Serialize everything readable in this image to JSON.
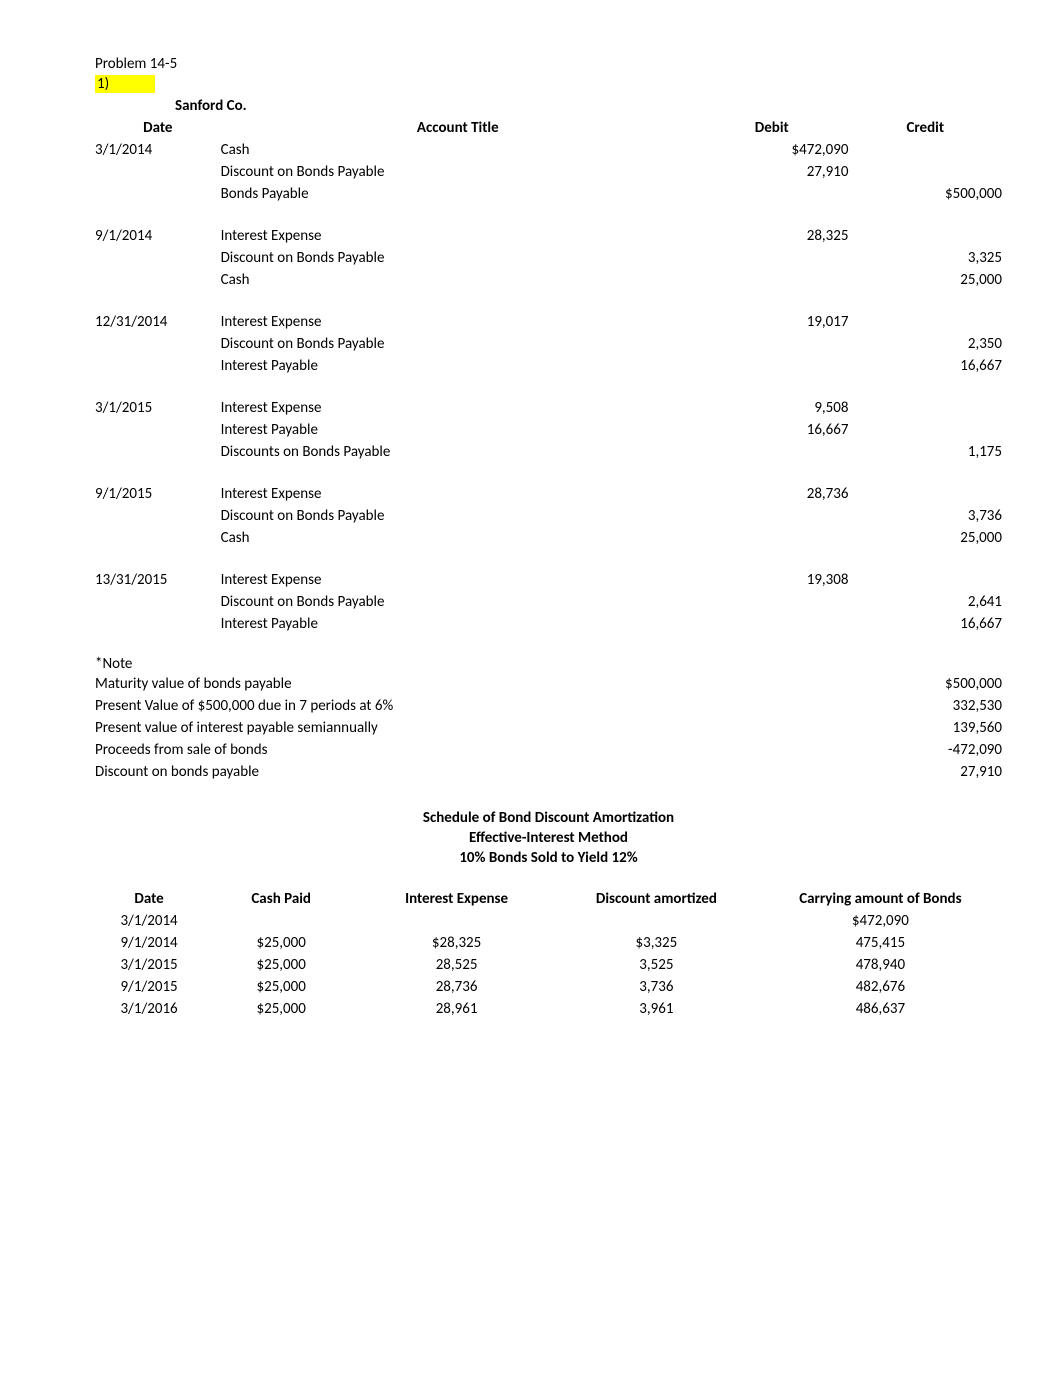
{
  "problem_title": "Problem 14-5",
  "part_number": "1)",
  "company_name": "Sanford Co.",
  "journal_headers": {
    "date": "Date",
    "account": "Account Title",
    "debit": "Debit",
    "credit": "Credit"
  },
  "entries": [
    {
      "date": "3/1/2014",
      "rows": [
        {
          "account": "Cash",
          "debit": "$472,090",
          "credit": ""
        },
        {
          "account": "Discount on Bonds Payable",
          "debit": "27,910",
          "credit": ""
        },
        {
          "account": "Bonds Payable",
          "debit": "",
          "credit": "$500,000"
        }
      ]
    },
    {
      "date": "9/1/2014",
      "rows": [
        {
          "account": "Interest Expense",
          "debit": "28,325",
          "credit": ""
        },
        {
          "account": "Discount on Bonds Payable",
          "debit": "",
          "credit": "3,325"
        },
        {
          "account": "Cash",
          "debit": "",
          "credit": "25,000"
        }
      ]
    },
    {
      "date": "12/31/2014",
      "rows": [
        {
          "account": "Interest Expense",
          "debit": "19,017",
          "credit": ""
        },
        {
          "account": "Discount on Bonds Payable",
          "debit": "",
          "credit": "2,350"
        },
        {
          "account": "Interest Payable",
          "debit": "",
          "credit": "16,667"
        }
      ]
    },
    {
      "date": "3/1/2015",
      "rows": [
        {
          "account": "Interest Expense",
          "debit": "9,508",
          "credit": ""
        },
        {
          "account": "Interest Payable",
          "debit": "16,667",
          "credit": ""
        },
        {
          "account": "Discounts on Bonds Payable",
          "debit": "",
          "credit": "1,175"
        }
      ]
    },
    {
      "date": "9/1/2015",
      "rows": [
        {
          "account": "Interest Expense",
          "debit": "28,736",
          "credit": ""
        },
        {
          "account": "Discount on Bonds Payable",
          "debit": "",
          "credit": "3,736"
        },
        {
          "account": "Cash",
          "debit": "",
          "credit": "25,000"
        }
      ]
    },
    {
      "date": "13/31/2015",
      "rows": [
        {
          "account": "Interest Expense",
          "debit": "19,308",
          "credit": ""
        },
        {
          "account": "Discount on Bonds Payable",
          "debit": "",
          "credit": "2,641"
        },
        {
          "account": "Interest Payable",
          "debit": "",
          "credit": "16,667"
        }
      ]
    }
  ],
  "note_title": "*Note",
  "note_items": [
    {
      "label": "Maturity value of bonds payable",
      "value": "$500,000"
    },
    {
      "label": "Present Value of $500,000 due in 7 periods at 6%",
      "value": "332,530"
    },
    {
      "label": "Present value of interest payable semiannually",
      "value": "139,560"
    },
    {
      "label": "Proceeds from sale of bonds",
      "value": "-472,090"
    },
    {
      "label": "Discount on bonds payable",
      "value": "27,910"
    }
  ],
  "schedule": {
    "title1": "Schedule of Bond Discount Amortization",
    "title2": "Effective-Interest Method",
    "title3": "10% Bonds Sold to Yield 12%",
    "headers": {
      "date": "Date",
      "cash": "Cash Paid",
      "interest": "Interest Expense",
      "discount": "Discount amortized",
      "carrying": "Carrying amount of Bonds"
    },
    "rows": [
      {
        "date": "3/1/2014",
        "cash": "",
        "interest": "",
        "discount": "",
        "carrying": "$472,090"
      },
      {
        "date": "9/1/2014",
        "cash": "$25,000",
        "interest": "$28,325",
        "discount": "$3,325",
        "carrying": "475,415"
      },
      {
        "date": "3/1/2015",
        "cash": "$25,000",
        "interest": "28,525",
        "discount": "3,525",
        "carrying": "478,940"
      },
      {
        "date": "9/1/2015",
        "cash": "$25,000",
        "interest": "28,736",
        "discount": "3,736",
        "carrying": "482,676"
      },
      {
        "date": "3/1/2016",
        "cash": "$25,000",
        "interest": "28,961",
        "discount": "3,961",
        "carrying": "486,637"
      }
    ]
  },
  "styles": {
    "highlight_color": "#ffff00",
    "text_color": "#000000",
    "background_color": "#ffffff",
    "font_family": "Calibri, Arial, sans-serif",
    "font_size": 15
  }
}
